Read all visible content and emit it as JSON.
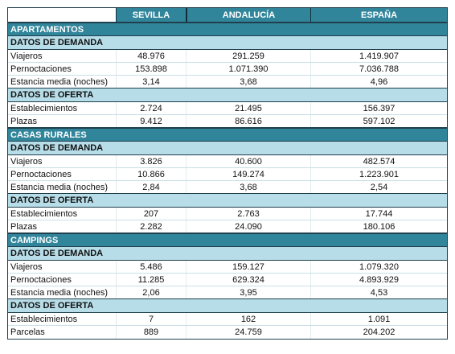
{
  "header": {
    "col1": "SEVILLA",
    "col2": "ANDALUCÍA",
    "col3": "ESPAÑA"
  },
  "sections": [
    {
      "title": "APARTAMENTOS",
      "demand": {
        "title": "DATOS DE DEMANDA",
        "rows": [
          {
            "label": "Viajeros",
            "sevilla": "48.976",
            "andalucia": "291.259",
            "espana": "1.419.907"
          },
          {
            "label": "Pernoctaciones",
            "sevilla": "153.898",
            "andalucia": "1.071.390",
            "espana": "7.036.788"
          },
          {
            "label": "Estancia media (noches)",
            "sevilla": "3,14",
            "andalucia": "3,68",
            "espana": "4,96"
          }
        ]
      },
      "supply": {
        "title": "DATOS DE OFERTA",
        "rows": [
          {
            "label": "Establecimientos",
            "sevilla": "2.724",
            "andalucia": "21.495",
            "espana": "156.397"
          },
          {
            "label": "Plazas",
            "sevilla": "9.412",
            "andalucia": "86.616",
            "espana": "597.102"
          }
        ]
      }
    },
    {
      "title": "CASAS RURALES",
      "demand": {
        "title": "DATOS DE DEMANDA",
        "rows": [
          {
            "label": "Viajeros",
            "sevilla": "3.826",
            "andalucia": "40.600",
            "espana": "482.574"
          },
          {
            "label": "Pernoctaciones",
            "sevilla": "10.866",
            "andalucia": "149.274",
            "espana": "1.223.901"
          },
          {
            "label": "Estancia media (noches)",
            "sevilla": "2,84",
            "andalucia": "3,68",
            "espana": "2,54"
          }
        ]
      },
      "supply": {
        "title": "DATOS DE OFERTA",
        "rows": [
          {
            "label": "Establecimientos",
            "sevilla": "207",
            "andalucia": "2.763",
            "espana": "17.744"
          },
          {
            "label": "Plazas",
            "sevilla": "2.282",
            "andalucia": "24.090",
            "espana": "180.106"
          }
        ]
      }
    },
    {
      "title": "CAMPINGS",
      "demand": {
        "title": "DATOS DE DEMANDA",
        "rows": [
          {
            "label": "Viajeros",
            "sevilla": "5.486",
            "andalucia": "159.127",
            "espana": "1.079.320"
          },
          {
            "label": "Pernoctaciones",
            "sevilla": "11.285",
            "andalucia": "629.324",
            "espana": "4.893.929"
          },
          {
            "label": "Estancia media (noches)",
            "sevilla": "2,06",
            "andalucia": "3,95",
            "espana": "4,53"
          }
        ]
      },
      "supply": {
        "title": "DATOS DE OFERTA",
        "rows": [
          {
            "label": "Establecimientos",
            "sevilla": "7",
            "andalucia": "162",
            "espana": "1.091"
          },
          {
            "label": "Parcelas",
            "sevilla": "889",
            "andalucia": "24.759",
            "espana": "204.202"
          }
        ]
      }
    }
  ]
}
